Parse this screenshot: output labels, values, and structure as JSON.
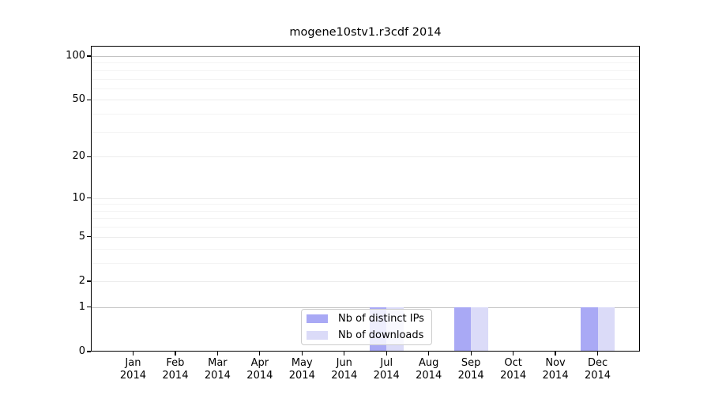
{
  "chart_data": {
    "type": "bar",
    "title": "mogene10stv1.r3cdf 2014",
    "categories": [
      "Jan 2014",
      "Feb 2014",
      "Mar 2014",
      "Apr 2014",
      "May 2014",
      "Jun 2014",
      "Jul 2014",
      "Aug 2014",
      "Sep 2014",
      "Oct 2014",
      "Nov 2014",
      "Dec 2014"
    ],
    "x_tick_line1": [
      "Jan",
      "Feb",
      "Mar",
      "Apr",
      "May",
      "Jun",
      "Jul",
      "Aug",
      "Sep",
      "Oct",
      "Nov",
      "Dec"
    ],
    "x_tick_line2": "2014",
    "series": [
      {
        "name": "Nb of distinct IPs",
        "color": "#a9a9f5",
        "values": [
          0,
          0,
          0,
          0,
          0,
          0,
          1,
          0,
          1,
          0,
          0,
          1
        ]
      },
      {
        "name": "Nb of downloads",
        "color": "#dbdbf8",
        "values": [
          0,
          0,
          0,
          0,
          0,
          0,
          1,
          0,
          1,
          0,
          0,
          1
        ]
      }
    ],
    "y_axis": {
      "scale": "log1p",
      "ticks": [
        100,
        50,
        20,
        10,
        5,
        2,
        1,
        0
      ],
      "minor_ticks": [
        3,
        4,
        6,
        7,
        8,
        9,
        30,
        40,
        60,
        70,
        80,
        90
      ],
      "emphasized_gridlines": [
        1,
        100
      ],
      "ylim": [
        0,
        117.5
      ]
    },
    "xlabel": "",
    "ylabel": "",
    "grid": true,
    "legend": {
      "position": "lower center",
      "entries": [
        {
          "label": "Nb of distinct IPs",
          "color": "#a9a9f5"
        },
        {
          "label": "Nb of downloads",
          "color": "#dbdbf8"
        }
      ]
    },
    "colors": {
      "background": "#ffffff",
      "axis": "#000000",
      "grid_emphasized": "#c3c3c3",
      "grid_major": "#ececec",
      "grid_minor": "#f4f4f4",
      "tick_text": "#000000"
    }
  }
}
